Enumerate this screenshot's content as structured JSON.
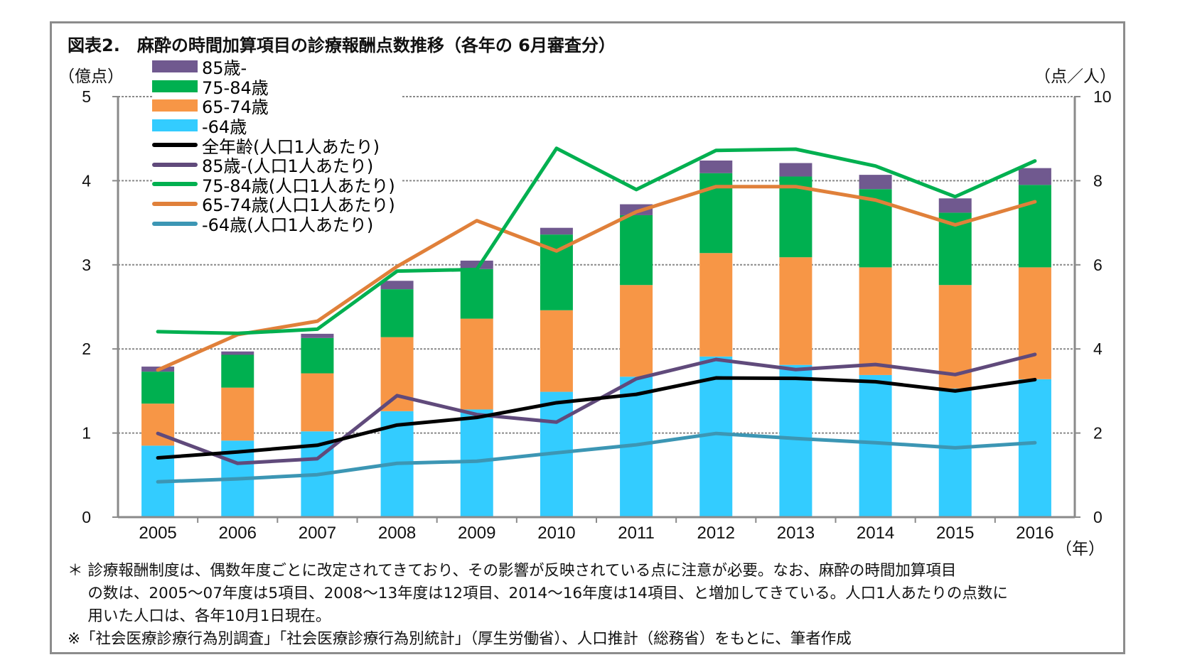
{
  "title": "図表2.　麻酔の時間加算項目の診療報酬点数推移（各年の 6月審査分）",
  "chart_data": {
    "type": "bar+line",
    "title": "図表2.　麻酔の時間加算項目の診療報酬点数推移（各年の 6月審査分）",
    "ylabel_left": "（億点）",
    "ylabel_right": "（点／人）",
    "xlabel": "（年）",
    "ylim_left": [
      0,
      5
    ],
    "ylim_right": [
      0,
      10
    ],
    "yticks_left": [
      "0",
      "1",
      "2",
      "3",
      "4",
      "5"
    ],
    "yticks_right": [
      "0",
      "2",
      "4",
      "6",
      "8",
      "10"
    ],
    "grid": true,
    "legend_position": "top-left",
    "categories": [
      "2005",
      "2006",
      "2007",
      "2008",
      "2009",
      "2010",
      "2011",
      "2012",
      "2013",
      "2014",
      "2015",
      "2016"
    ],
    "bar_series": [
      {
        "name": "-64歳",
        "color": "#33ccff",
        "axis": "left",
        "values": [
          0.85,
          0.91,
          1.02,
          1.26,
          1.28,
          1.49,
          1.67,
          1.91,
          1.81,
          1.69,
          1.53,
          1.64
        ]
      },
      {
        "name": "65-74歳",
        "color": "#f79646",
        "axis": "left",
        "values": [
          0.5,
          0.63,
          0.69,
          0.88,
          1.08,
          0.97,
          1.09,
          1.23,
          1.28,
          1.28,
          1.23,
          1.33
        ]
      },
      {
        "name": "75-84歳",
        "color": "#00b050",
        "axis": "left",
        "values": [
          0.38,
          0.39,
          0.42,
          0.57,
          0.59,
          0.9,
          0.83,
          0.95,
          0.96,
          0.93,
          0.86,
          0.98
        ]
      },
      {
        "name": "85歳-",
        "color": "#70598f",
        "axis": "left",
        "values": [
          0.06,
          0.04,
          0.05,
          0.1,
          0.1,
          0.08,
          0.13,
          0.15,
          0.16,
          0.17,
          0.17,
          0.2
        ]
      }
    ],
    "line_series": [
      {
        "name": "全年齢(人口1人あたり)",
        "color": "#000000",
        "axis": "right",
        "values": [
          1.41,
          1.55,
          1.71,
          2.19,
          2.37,
          2.72,
          2.92,
          3.31,
          3.3,
          3.22,
          3.0,
          3.27
        ]
      },
      {
        "name": "85歳-(人口1人あたり)",
        "color": "#604a7b",
        "axis": "right",
        "values": [
          1.99,
          1.28,
          1.39,
          2.89,
          2.44,
          2.26,
          3.29,
          3.75,
          3.51,
          3.63,
          3.39,
          3.87
        ]
      },
      {
        "name": "75-84歳(人口1人あたり)",
        "color": "#00b050",
        "axis": "right",
        "values": [
          4.41,
          4.37,
          4.47,
          5.85,
          5.89,
          8.77,
          7.79,
          8.72,
          8.75,
          8.35,
          7.62,
          8.47
        ]
      },
      {
        "name": "65-74歳(人口1人あたり)",
        "color": "#e0803a",
        "axis": "right",
        "values": [
          3.5,
          4.34,
          4.66,
          5.96,
          7.05,
          6.33,
          7.26,
          7.86,
          7.86,
          7.54,
          6.95,
          7.5
        ]
      },
      {
        "name": "-64歳(人口1人あたり)",
        "color": "#3c96b4",
        "axis": "right",
        "values": [
          0.84,
          0.91,
          1.01,
          1.28,
          1.33,
          1.53,
          1.72,
          1.99,
          1.87,
          1.77,
          1.65,
          1.77
        ]
      }
    ],
    "legend_order": [
      "85歳-",
      "75-84歳",
      "65-74歳",
      "-64歳",
      "全年齢(人口1人あたり)",
      "85歳-(人口1人あたり)",
      "75-84歳(人口1人あたり)",
      "65-74歳(人口1人あたり)",
      "-64歳(人口1人あたり)"
    ]
  },
  "legend": [
    {
      "label": "85歳-",
      "color": "#70598f",
      "kind": "box"
    },
    {
      "label": "75-84歳",
      "color": "#00b050",
      "kind": "box"
    },
    {
      "label": "65-74歳",
      "color": "#f79646",
      "kind": "box"
    },
    {
      "label": "-64歳",
      "color": "#33ccff",
      "kind": "box"
    },
    {
      "label": "全年齢(人口1人あたり)",
      "color": "#000000",
      "kind": "line"
    },
    {
      "label": "85歳-(人口1人あたり)",
      "color": "#604a7b",
      "kind": "line"
    },
    {
      "label": "75-84歳(人口1人あたり)",
      "color": "#00b050",
      "kind": "line"
    },
    {
      "label": "65-74歳(人口1人あたり)",
      "color": "#e0803a",
      "kind": "line"
    },
    {
      "label": "-64歳(人口1人あたり)",
      "color": "#3c96b4",
      "kind": "line"
    }
  ],
  "notes": [
    "＊ 診療報酬制度は、偶数年度ごとに改定されてきており、その影響が反映されている点に注意が必要。なお、麻酔の時間加算項目",
    "　 の数は、2005～07年度は5項目、2008～13年度は12項目、2014～16年度は14項目、と増加してきている。人口1人あたりの点数に",
    "　 用いた人口は、各年10月1日現在。",
    "※「社会医療診療行為別調査」「社会医療診療行為別統計」（厚生労働省）、人口推計（総務省）をもとに、筆者作成"
  ]
}
